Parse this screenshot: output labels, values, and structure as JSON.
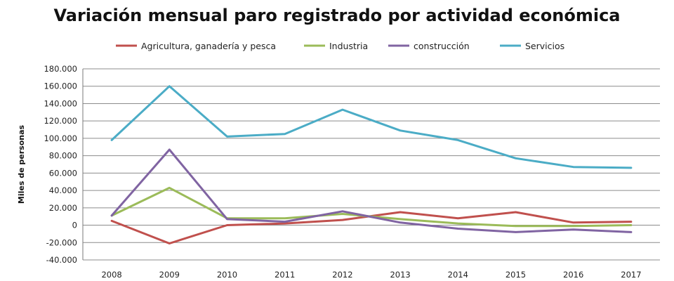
{
  "chart_data": {
    "type": "line",
    "title": "Variación mensual paro registrado por actividad económica",
    "ylabel": "Miles de personas",
    "x": [
      "2008",
      "2009",
      "2010",
      "2011",
      "2012",
      "2013",
      "2014",
      "2015",
      "2016",
      "2017"
    ],
    "ylim": [
      -40000,
      180000
    ],
    "yticks": [
      -40000,
      -20000,
      0,
      20000,
      40000,
      60000,
      80000,
      100000,
      120000,
      140000,
      160000,
      180000
    ],
    "ytick_labels": [
      "-40.000",
      "-20.000",
      "0",
      "20.000",
      "40.000",
      "60.000",
      "80.000",
      "100.000",
      "120.000",
      "140.000",
      "160.000",
      "180.000"
    ],
    "grid": true,
    "legend_position": "top",
    "series": [
      {
        "name": "Agricultura, ganadería y pesca",
        "color": "#c0504d",
        "values": [
          5000,
          -21000,
          0,
          2000,
          6000,
          15000,
          8000,
          15000,
          3000,
          4000
        ]
      },
      {
        "name": "Industria",
        "color": "#9bbb59",
        "values": [
          11000,
          43000,
          8000,
          8000,
          13000,
          7000,
          2000,
          -1000,
          -1000,
          0
        ]
      },
      {
        "name": "construcción",
        "color": "#8064a2",
        "values": [
          11000,
          87000,
          7000,
          4000,
          16000,
          3000,
          -4000,
          -8000,
          -5000,
          -8000
        ]
      },
      {
        "name": "Servicios",
        "color": "#4bacc6",
        "values": [
          98000,
          160000,
          102000,
          105000,
          133000,
          109000,
          98000,
          77000,
          67000,
          66000
        ]
      }
    ]
  }
}
